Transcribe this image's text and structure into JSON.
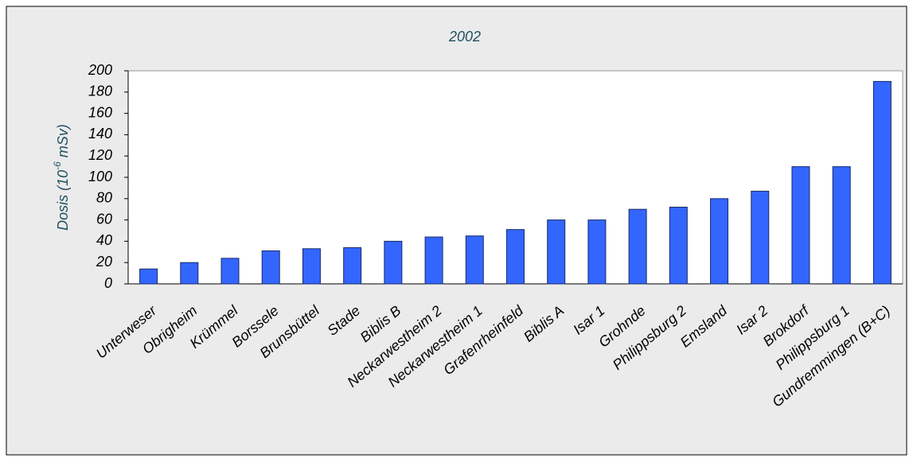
{
  "chart_data": {
    "type": "bar",
    "title": "2002",
    "y_label": [
      "Dosis (10",
      "-6",
      " mSv)"
    ],
    "categories": [
      "Unterweser",
      "Obrigheim",
      "Krümmel",
      "Borssele",
      "Brunsbüttel",
      "Stade",
      "Biblis B",
      "Neckarwestheim 2",
      "Neckarwestheim 1",
      "Grafenrheinfeld",
      "Biblis A",
      "Isar 1",
      "Grohnde",
      "Philippsburg 2",
      "Emsland",
      "Isar 2",
      "Brokdorf",
      "Philippsburg 1",
      "Gundremmingen (B+C)"
    ],
    "values": [
      14,
      20,
      24,
      31,
      33,
      34,
      40,
      44,
      45,
      51,
      60,
      60,
      70,
      72,
      80,
      87,
      110,
      110,
      190
    ],
    "color": "#3366ff",
    "ylim": [
      0,
      200
    ],
    "yticks": [
      0,
      20,
      40,
      60,
      80,
      100,
      120,
      140,
      160,
      180,
      200
    ],
    "grid": false
  }
}
